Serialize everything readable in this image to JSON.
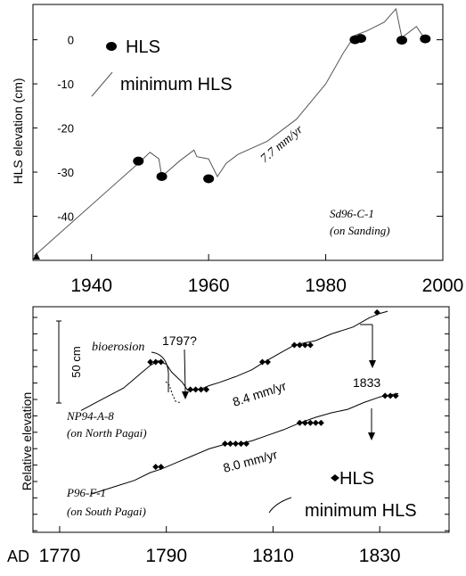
{
  "chart_data": [
    {
      "type": "line",
      "ylabel": "HLS elevation (cm)",
      "xlim": [
        1930,
        2000
      ],
      "ylim": [
        -50,
        8
      ],
      "xticks": [
        1940,
        1960,
        1980,
        2000
      ],
      "xtick_labels": [
        "1940",
        "1960",
        "1980",
        "2000"
      ],
      "yticks": [
        0,
        -10,
        -20,
        -30,
        -40
      ],
      "ytick_labels": [
        "0",
        "-10",
        "-20",
        "-30",
        "-40"
      ],
      "legend": {
        "position": "top-left",
        "hls_label": "HLS",
        "min_label": "minimum HLS"
      },
      "sample_label_1": "Sd96-C-1",
      "sample_label_2": "(on Sanding)",
      "rate_annotation": "7.7 mm/yr",
      "series": [
        {
          "name": "minimum HLS",
          "x": [
            1930.2,
            1948,
            1950,
            1951.5,
            1952,
            1955,
            1957.5,
            1958,
            1960,
            1961.5,
            1963,
            1965,
            1970,
            1975,
            1980,
            1983,
            1985,
            1987,
            1990,
            1992,
            1993,
            1995.5,
            1997
          ],
          "y": [
            -49,
            -28,
            -25.5,
            -27,
            -31,
            -27.5,
            -25,
            -26.5,
            -27,
            -31,
            -28,
            -26,
            -23,
            -18,
            -10,
            -3,
            1,
            2,
            4,
            7,
            0.5,
            3,
            0
          ]
        },
        {
          "name": "HLS",
          "x": [
            1948,
            1952,
            1960,
            1985,
            1986,
            1993,
            1997
          ],
          "y": [
            -27.5,
            -31,
            -31.5,
            0,
            0.3,
            -0.1,
            0.2
          ]
        }
      ]
    },
    {
      "type": "line",
      "ylabel": "Relative elevation",
      "xlim": [
        1765,
        1843
      ],
      "ylim": [
        0,
        100
      ],
      "xticks": [
        1770,
        1790,
        1810,
        1830
      ],
      "xtick_labels": [
        "1770",
        "1790",
        "1810",
        "1830"
      ],
      "x_prefix": "AD",
      "scale_bar_label": "50 cm",
      "scale_bar_cm": 50,
      "annotations": {
        "bioerosion": "bioerosion",
        "event_1797": "1797?",
        "event_1833": "1833",
        "rate_top": "8.4 mm/yr",
        "rate_bottom": "8.0 mm/yr"
      },
      "legend": {
        "position": "bottom-right",
        "hls_label": "HLS",
        "min_label": "minimum HLS"
      },
      "series": [
        {
          "name": "NP94-A-8",
          "sublabel": "(on North Pagai)",
          "x": [
            1774,
            1778,
            1782,
            1785,
            1787,
            1788.5,
            1789,
            1790,
            1791,
            1793,
            1794,
            1795,
            1796,
            1797,
            1798,
            1800,
            1803,
            1806,
            1808,
            1811,
            1814,
            1818,
            1821,
            1825,
            1828,
            1830,
            1831.5
          ],
          "y": [
            54,
            59,
            64,
            70,
            74,
            76,
            75.5,
            74.5,
            71,
            66.5,
            63,
            63,
            63.5,
            64,
            65,
            66.5,
            69,
            72,
            75,
            79,
            83,
            85,
            88,
            91,
            95,
            97,
            98
          ],
          "hls_x": [
            1787,
            1788,
            1789,
            1794.5,
            1795.5,
            1796.5,
            1797.5,
            1808,
            1809,
            1814,
            1815,
            1816,
            1817,
            1829.5
          ],
          "hls_y": [
            75.5,
            75.5,
            75.5,
            63.3,
            63.3,
            63.3,
            63.3,
            75.5,
            75.5,
            83,
            83,
            83,
            83,
            97.5
          ]
        },
        {
          "name": "P96-F-1",
          "sublabel": "(on South Pagai)",
          "x": [
            1776,
            1780,
            1784,
            1787,
            1789,
            1792,
            1795,
            1798,
            1801,
            1804,
            1806,
            1809,
            1812,
            1815,
            1818,
            1821,
            1824,
            1827,
            1830,
            1832,
            1833.5
          ],
          "y": [
            17,
            20,
            23,
            26.5,
            28,
            31,
            34,
            37,
            39,
            39.5,
            40.5,
            43,
            45.5,
            48.5,
            51,
            53,
            54.5,
            57.5,
            60,
            61,
            61.5
          ],
          "hls_x": [
            1788,
            1789,
            1801,
            1802,
            1803,
            1804,
            1805,
            1815,
            1816,
            1817,
            1818,
            1819,
            1831,
            1832,
            1833
          ],
          "hls_y": [
            29,
            29,
            39.3,
            39.3,
            39.3,
            39.3,
            39.3,
            48.5,
            48.5,
            48.5,
            48.5,
            48.5,
            60.5,
            60.5,
            60.5
          ]
        }
      ]
    }
  ]
}
